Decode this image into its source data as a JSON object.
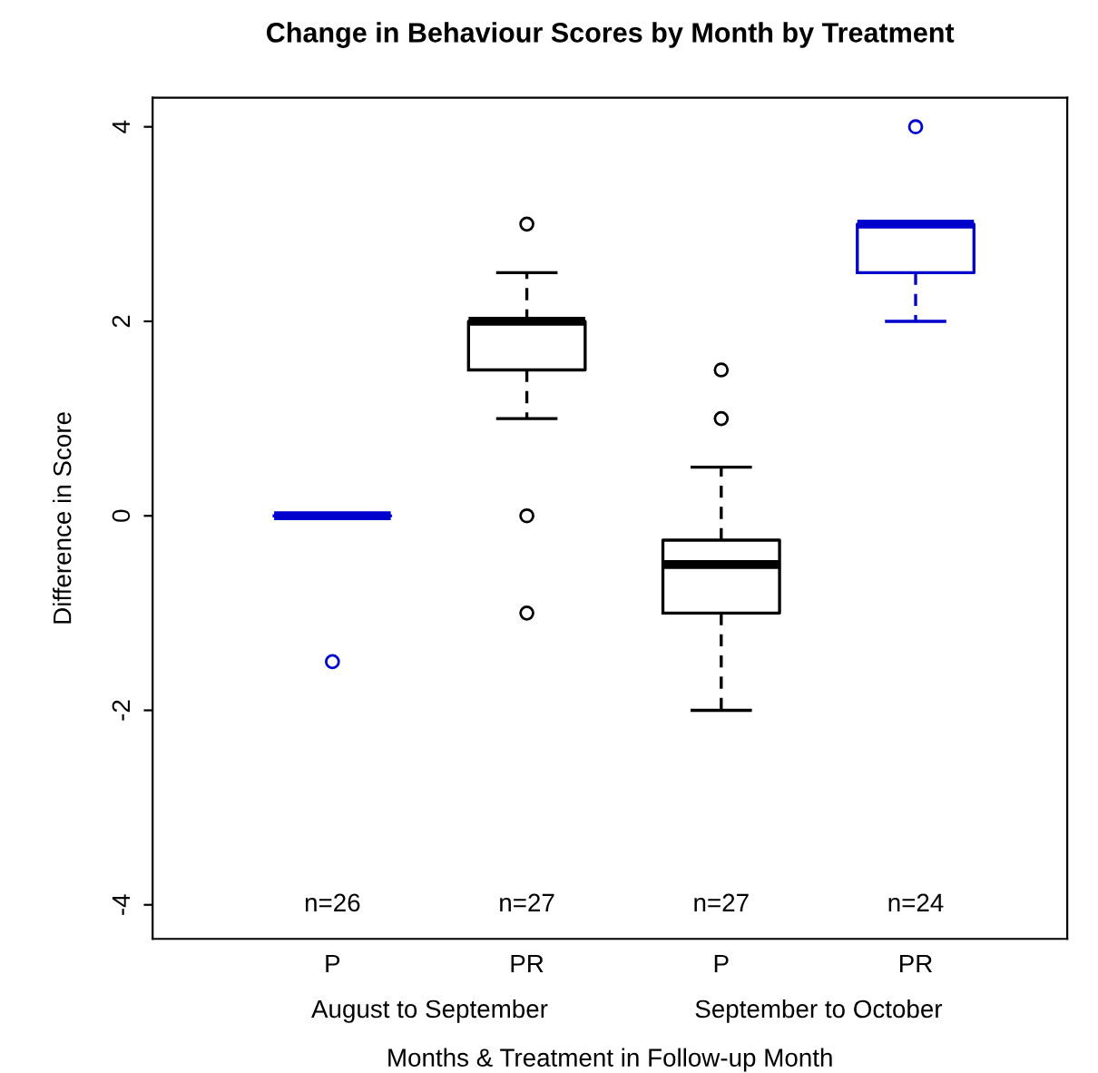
{
  "chart_data": {
    "type": "box",
    "title": "Change in Behaviour Scores by Month by Treatment",
    "xlabel": "Months & Treatment in Follow-up Month",
    "ylabel": "Difference in Score",
    "categories": [
      "P",
      "PR",
      "P",
      "PR"
    ],
    "colors": [
      "#0000cc",
      "#000000",
      "#000000",
      "#0000cc"
    ],
    "boxes": [
      {
        "low": 0,
        "q1": 0,
        "median": 0,
        "q3": 0,
        "high": 0,
        "outliers": [
          -1.5
        ]
      },
      {
        "low": 1,
        "q1": 1.5,
        "median": 2,
        "q3": 2,
        "high": 2.5,
        "outliers": [
          3,
          0,
          -1
        ]
      },
      {
        "low": -2,
        "q1": -1,
        "median": -0.5,
        "q3": -0.25,
        "high": 0.5,
        "outliers": [
          1,
          1.5
        ]
      },
      {
        "low": 2,
        "q1": 2.5,
        "median": 3,
        "q3": 3,
        "high": 3,
        "outliers": [
          4
        ]
      }
    ],
    "ylim": [
      -4.35,
      4.3
    ],
    "yticks": [
      -4,
      -2,
      0,
      2,
      4
    ],
    "grid": false,
    "annotations": [
      "n=26",
      "n=27",
      "n=27",
      "n=24",
      "August to September",
      "September to October"
    ]
  }
}
